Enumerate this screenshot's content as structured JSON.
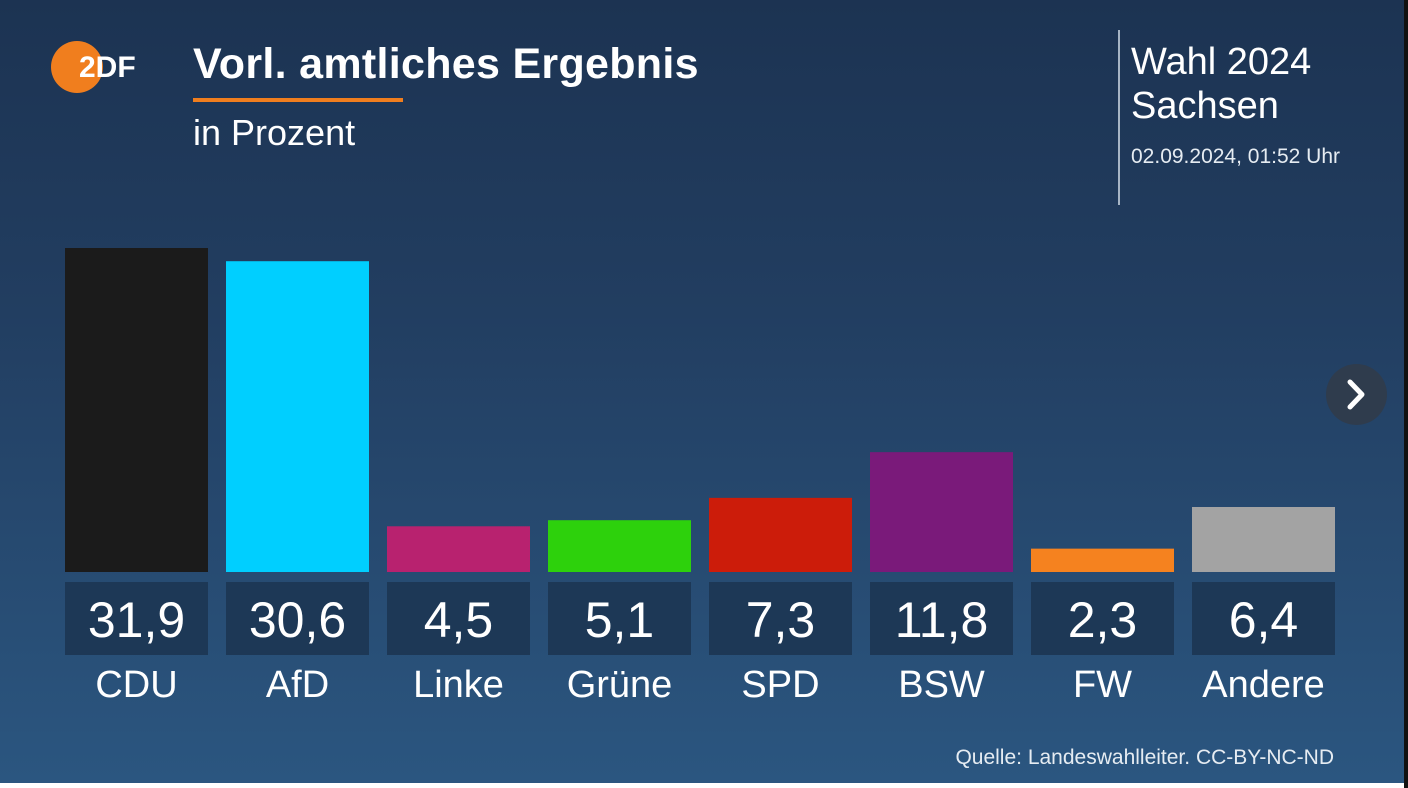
{
  "header": {
    "logo_text": "2DF",
    "title": "Vorl. amtliches Ergebnis",
    "subtitle": "in Prozent",
    "election_title": "Wahl 2024",
    "election_region": "Sachsen",
    "timestamp": "02.09.2024, 01:52 Uhr",
    "accent_color": "#f07e1e"
  },
  "chart_data": {
    "type": "bar",
    "categories": [
      "CDU",
      "AfD",
      "Linke",
      "Grüne",
      "SPD",
      "BSW",
      "FW",
      "Andere"
    ],
    "values": [
      31.9,
      30.6,
      4.5,
      5.1,
      7.3,
      11.8,
      2.3,
      6.4
    ],
    "value_labels": [
      "31,9",
      "30,6",
      "4,5",
      "5,1",
      "7,3",
      "11,8",
      "2,3",
      "6,4"
    ],
    "colors": [
      "#1b1b1b",
      "#00cfff",
      "#b8226f",
      "#2dd10c",
      "#cc1c0a",
      "#7a1a7a",
      "#f5821f",
      "#a3a3a3"
    ],
    "ylabel": "in Prozent",
    "ylim": [
      0,
      31.9
    ],
    "grid": false,
    "legend": "none"
  },
  "navigation": {
    "next_icon": "chevron-right-icon"
  },
  "footer": {
    "source": "Quelle: Landeswahlleiter. CC-BY-NC-ND"
  }
}
